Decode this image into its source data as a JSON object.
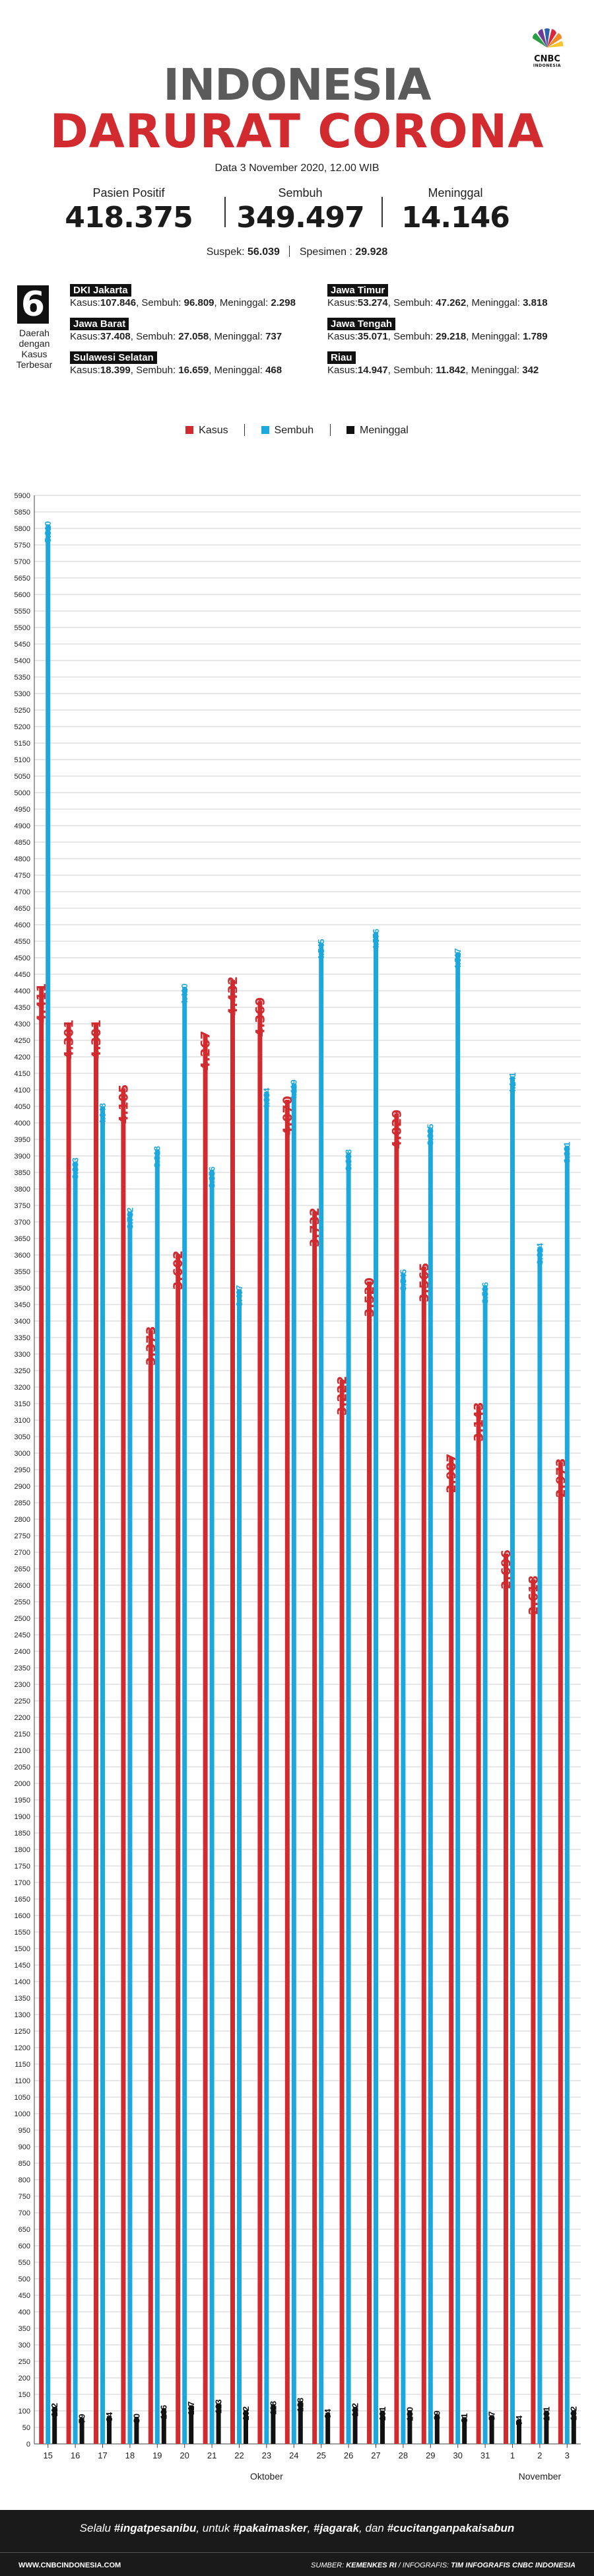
{
  "logo": {
    "name": "CNBC",
    "sub": "INDONESIA"
  },
  "header": {
    "title_line1": "INDONESIA",
    "title_line2": "DARURAT CORONA",
    "date": "Data 3 November 2020, 12.00 WIB"
  },
  "summary": {
    "stats": [
      {
        "label": "Pasien Positif",
        "value": "418.375"
      },
      {
        "label": "Sembuh",
        "value": "349.497"
      },
      {
        "label": "Meninggal",
        "value": "14.146"
      }
    ],
    "suspek_label": "Suspek: ",
    "suspek_value": "56.039",
    "spesimen_label": "Spesimen : ",
    "spesimen_value": "29.928"
  },
  "regions": {
    "count": "6",
    "caption": "Daerah dengan Kasus Terbesar",
    "kasus_label": "Kasus:",
    "sembuh_label": ", Sembuh: ",
    "meninggal_label": ", Meninggal: ",
    "items": [
      {
        "name": "DKI Jakarta",
        "kasus": "107.846",
        "sembuh": "96.809",
        "meninggal": "2.298"
      },
      {
        "name": "Jawa Timur",
        "kasus": "53.274",
        "sembuh": "47.262",
        "meninggal": "3.818"
      },
      {
        "name": "Jawa Barat",
        "kasus": "37.408",
        "sembuh": "27.058",
        "meninggal": "737"
      },
      {
        "name": "Jawa Tengah",
        "kasus": "35.071",
        "sembuh": "29.218",
        "meninggal": "1.789"
      },
      {
        "name": "Sulawesi Selatan",
        "kasus": "18.399",
        "sembuh": "16.659",
        "meninggal": "468"
      },
      {
        "name": "Riau",
        "kasus": "14.947",
        "sembuh": "11.842",
        "meninggal": "342"
      }
    ]
  },
  "colors": {
    "kasus": "#d12a2f",
    "sembuh": "#1ca8dd",
    "meninggal": "#111111",
    "grid": "#cfcfcf"
  },
  "chart_data": {
    "type": "bar",
    "legend": [
      "Kasus",
      "Sembuh",
      "Meninggal"
    ],
    "legend_position": "top-center",
    "categories": [
      "15",
      "16",
      "17",
      "18",
      "19",
      "20",
      "21",
      "22",
      "23",
      "24",
      "25",
      "26",
      "27",
      "28",
      "29",
      "30",
      "31",
      "1",
      "2",
      "3"
    ],
    "month_labels": [
      {
        "label": "Oktober",
        "from": 0,
        "to": 16
      },
      {
        "label": "November",
        "from": 17,
        "to": 19
      }
    ],
    "series": [
      {
        "name": "Kasus",
        "values": [
          4411,
          4301,
          4301,
          4105,
          3373,
          3602,
          4267,
          4432,
          4369,
          4070,
          3732,
          3222,
          3520,
          4029,
          3565,
          2987,
          3143,
          2696,
          2618,
          2973
        ],
        "labels": [
          "4.411",
          "4.301",
          "4.301",
          "4.105",
          "3.373",
          "3.602",
          "4.267",
          "4.432",
          "4.369",
          "4.070",
          "3.732",
          "3.222",
          "3.520",
          "4.029",
          "3.565",
          "2.987",
          "3.143",
          "2.696",
          "2.618",
          "2.973"
        ]
      },
      {
        "name": "Sembuh",
        "values": [
          5810,
          3883,
          4048,
          3732,
          3918,
          4410,
          3856,
          3497,
          4094,
          4119,
          4545,
          3908,
          4576,
          3545,
          3985,
          4517,
          3506,
          4141,
          3624,
          3931
        ],
        "labels": [
          "5.810",
          "3.883",
          "4.048",
          "3.732",
          "3.918",
          "4.410",
          "3.856",
          "3.497",
          "4.094",
          "4.119",
          "4.545",
          "3.908",
          "4.576",
          "3.545",
          "3.985",
          "4.517",
          "3.506",
          "4.141",
          "3.624",
          "3.931"
        ]
      },
      {
        "name": "Meninggal",
        "values": [
          112,
          79,
          84,
          80,
          106,
          117,
          123,
          102,
          118,
          128,
          94,
          112,
          101,
          100,
          89,
          81,
          87,
          74,
          101,
          102
        ],
        "labels": [
          "112",
          "79",
          "84",
          "80",
          "106",
          "117",
          "123",
          "102",
          "118",
          "128",
          "94",
          "112",
          "101",
          "100",
          "89",
          "81",
          "87",
          "74",
          "101",
          "102"
        ]
      }
    ],
    "ylim": [
      0,
      5900
    ],
    "ytick_step": 50,
    "grid": true
  },
  "footer": {
    "slogan_pre": "Selalu ",
    "slogan_h1": "#ingatpesanibu",
    "slogan_mid1": ", untuk ",
    "slogan_h2": "#pakaimasker",
    "slogan_mid2": ", ",
    "slogan_h3": "#jagarak",
    "slogan_mid3": ", dan ",
    "slogan_h4": "#cucitanganpakaisabun",
    "website": "WWW.CNBCINDONESIA.COM",
    "source_label": "SUMBER: ",
    "source_value": "KEMENKES RI",
    "credit_label": " / INFOGRAFIS: ",
    "credit_value": "TIM INFOGRAFIS CNBC INDONESIA"
  }
}
